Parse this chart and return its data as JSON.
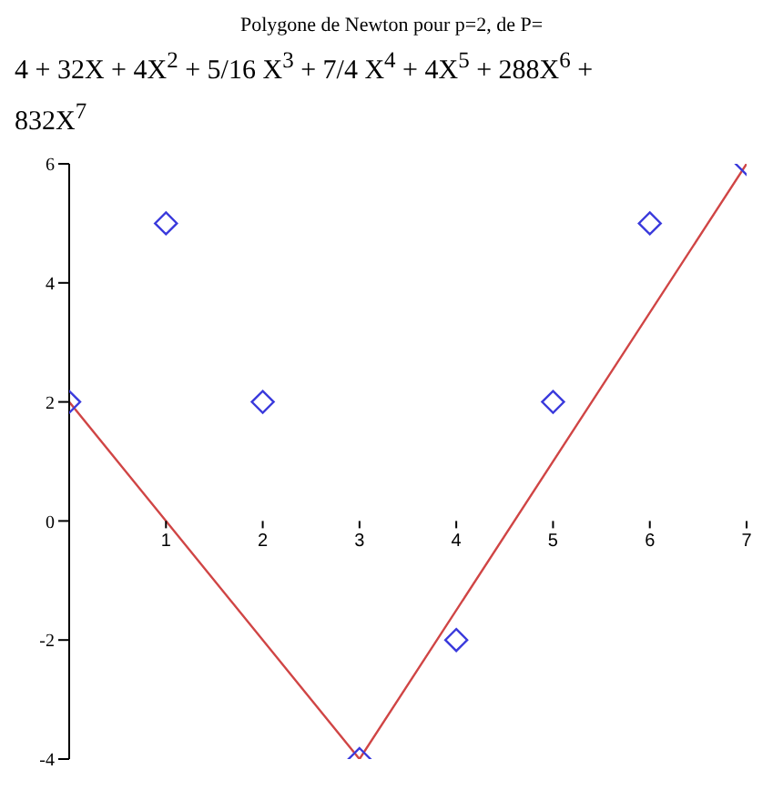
{
  "chart_data": {
    "type": "scatter",
    "title": "Polygone de Newton pour p=2, de P=",
    "subtitle": "4 + 32X + 4X$^{2}$ + 5/16 X$^{3}$ + 7/4 X$^{4}$ + 4X$^{5}$ + 288X$^{6}$ + 832X$^{7}$",
    "x": [
      0,
      1,
      2,
      3,
      4,
      5,
      6,
      7
    ],
    "series": [
      {
        "color": "#3a3adc",
        "values": [
          2,
          5,
          2,
          -4,
          -2,
          2,
          5,
          6
        ],
        "marker": "diamond"
      },
      {
        "type": "line",
        "color": "#d04545",
        "x": [
          0,
          3,
          7
        ],
        "values": [
          2,
          -4,
          6
        ],
        "marker": "none"
      }
    ],
    "xlim": [
      0,
      7
    ],
    "xticks": [
      {
        "value": 0,
        "label": null
      },
      1,
      2,
      3,
      4,
      5,
      6,
      7
    ],
    "ylim": [
      -4,
      6
    ],
    "yticks": [
      -4,
      -2,
      0,
      2,
      4,
      6
    ]
  }
}
